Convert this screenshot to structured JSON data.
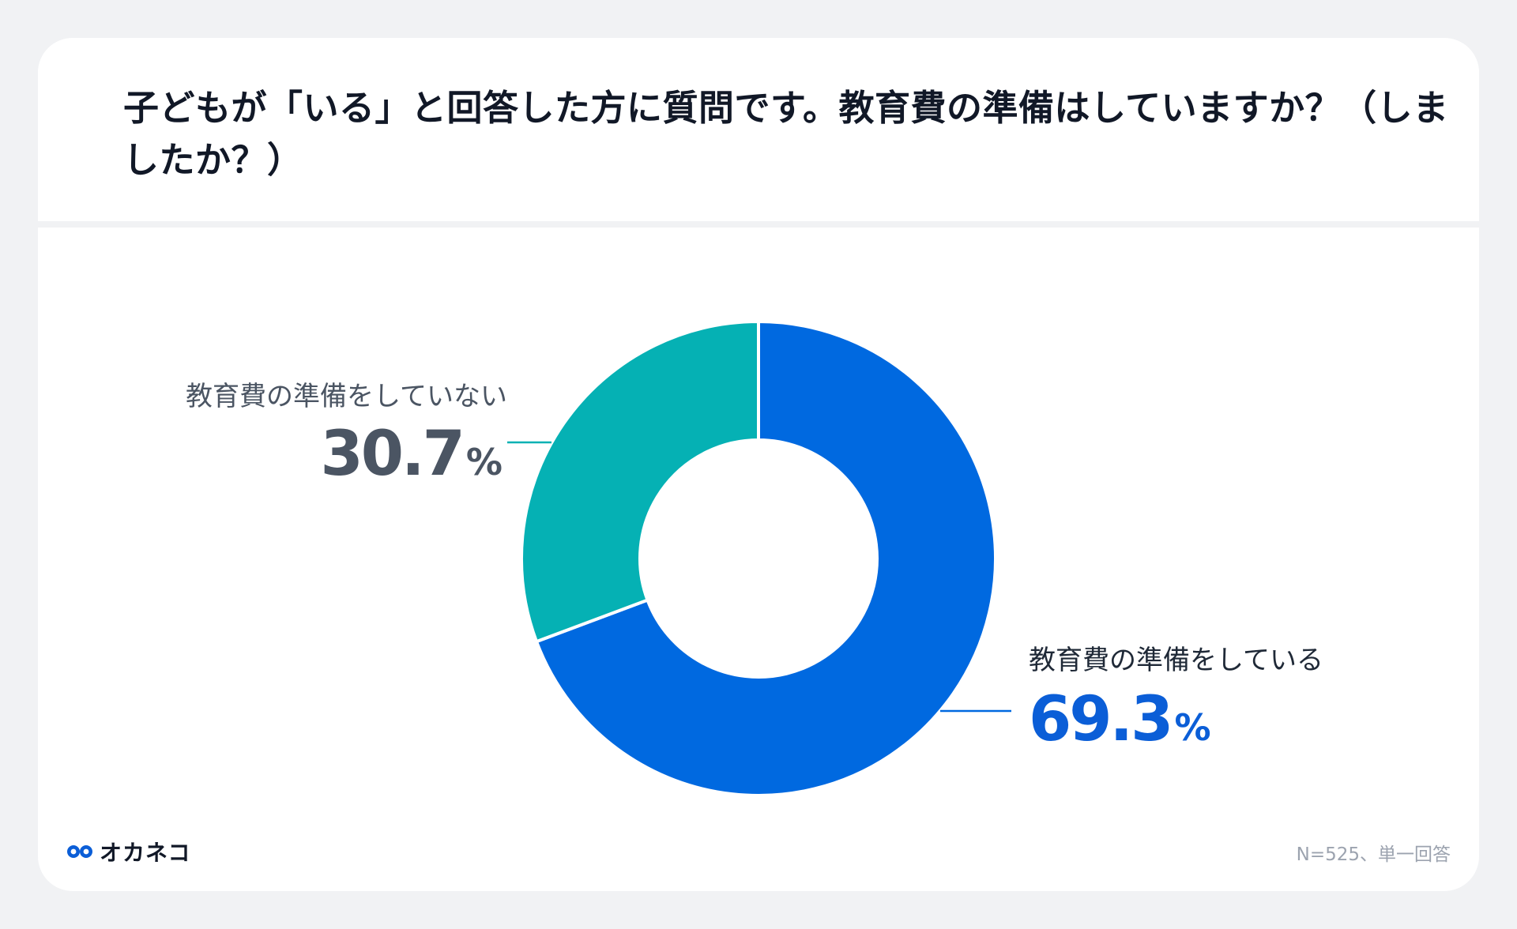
{
  "title": "子どもが「いる」と回答した方に質問です。教育費の準備はしていますか？（しましたか？）",
  "chart_data": {
    "type": "pie",
    "donut": true,
    "slices": [
      {
        "label": "教育費の準備をしている",
        "value": 69.3,
        "value_label": "69.3",
        "color": "#0069e0",
        "label_color": "#0b5ed7"
      },
      {
        "label": "教育費の準備をしていない",
        "value": 30.7,
        "value_label": "30.7",
        "color": "#05b1b4",
        "label_color": "#4b5563"
      }
    ],
    "unit": "%"
  },
  "footer": {
    "logo_text": "オカネコ",
    "note": "N=525、単一回答"
  },
  "colors": {
    "background": "#f1f2f4",
    "card": "#ffffff",
    "leader_line_blue": "#0069e0",
    "leader_line_teal": "#05b1b4"
  }
}
